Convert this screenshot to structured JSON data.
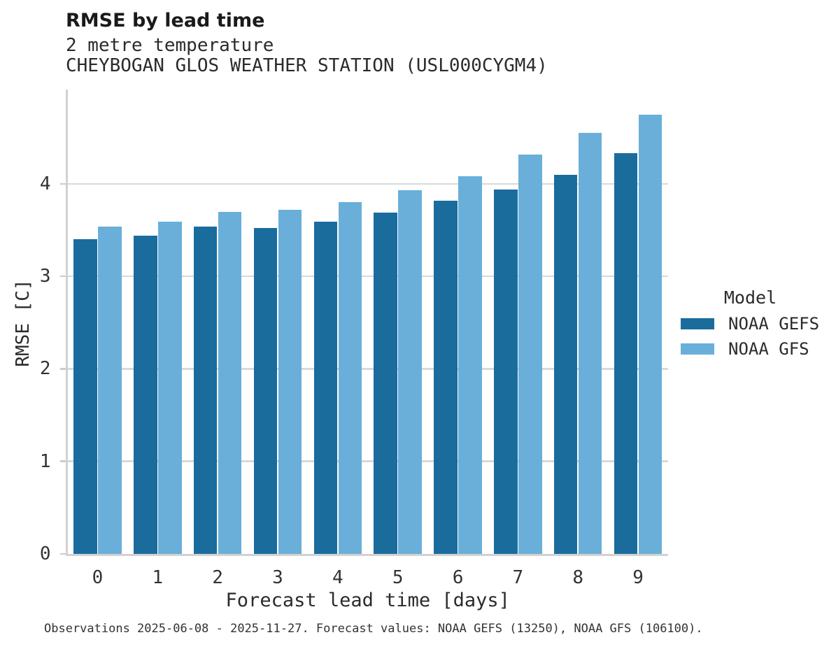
{
  "header": {
    "title": "RMSE by lead time",
    "subtitle": "2 metre temperature",
    "station_line": "CHEYBOGAN GLOS WEATHER STATION (USL000CYGM4)"
  },
  "chart_data": {
    "type": "bar",
    "title": "RMSE by lead time",
    "subtitle": "2 metre temperature",
    "station": "CHEYBOGAN GLOS WEATHER STATION (USL000CYGM4)",
    "xlabel": "Forecast lead time [days]",
    "ylabel": "RMSE [C]",
    "categories": [
      "0",
      "1",
      "2",
      "3",
      "4",
      "5",
      "6",
      "7",
      "8",
      "9"
    ],
    "series": [
      {
        "name": "NOAA GEFS",
        "color": "#1a6c9d",
        "values": [
          3.4,
          3.44,
          3.54,
          3.52,
          3.59,
          3.69,
          3.82,
          3.94,
          4.1,
          4.33
        ]
      },
      {
        "name": "NOAA GFS",
        "color": "#69afda",
        "values": [
          3.54,
          3.59,
          3.7,
          3.72,
          3.8,
          3.93,
          4.08,
          4.32,
          4.55,
          4.75
        ]
      }
    ],
    "ylim": [
      0,
      5.02
    ],
    "yticks": [
      0,
      1,
      2,
      3,
      4
    ],
    "grid": "horizontal",
    "legend_title": "Model",
    "legend_position": "right"
  },
  "legend": {
    "title": "Model",
    "entries": [
      {
        "label": "NOAA GEFS",
        "color": "#1a6c9d"
      },
      {
        "label": "NOAA GFS",
        "color": "#69afda"
      }
    ]
  },
  "footer": {
    "text": "Observations 2025-06-08 - 2025-11-27. Forecast values: NOAA GEFS (13250), NOAA GFS (106100)."
  }
}
